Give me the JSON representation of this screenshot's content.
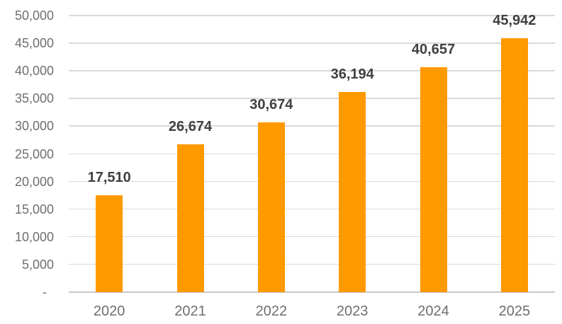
{
  "chart_data": {
    "type": "bar",
    "title": "",
    "categories": [
      "2020",
      "2021",
      "2022",
      "2023",
      "2024",
      "2025"
    ],
    "values": [
      17510,
      26674,
      30674,
      36194,
      40657,
      45942
    ],
    "data_labels": [
      "17,510",
      "26,674",
      "30,674",
      "36,194",
      "40,657",
      "45,942"
    ],
    "xlabel": "",
    "ylabel": "",
    "y_axis": {
      "min": 0,
      "max": 50000,
      "step": 5000,
      "tick_labels": [
        "-",
        "5,000",
        "10,000",
        "15,000",
        "20,000",
        "25,000",
        "30,000",
        "35,000",
        "40,000",
        "45,000",
        "50,000"
      ]
    },
    "grid": true,
    "legend": false,
    "colors": {
      "bar": "#FF9900",
      "data_label_text": "#404040",
      "axis_text": "#6E6E6E",
      "gridline": "#D9D9D9",
      "axis_line": "#C6C6C6",
      "background": "#FFFFFF"
    }
  }
}
